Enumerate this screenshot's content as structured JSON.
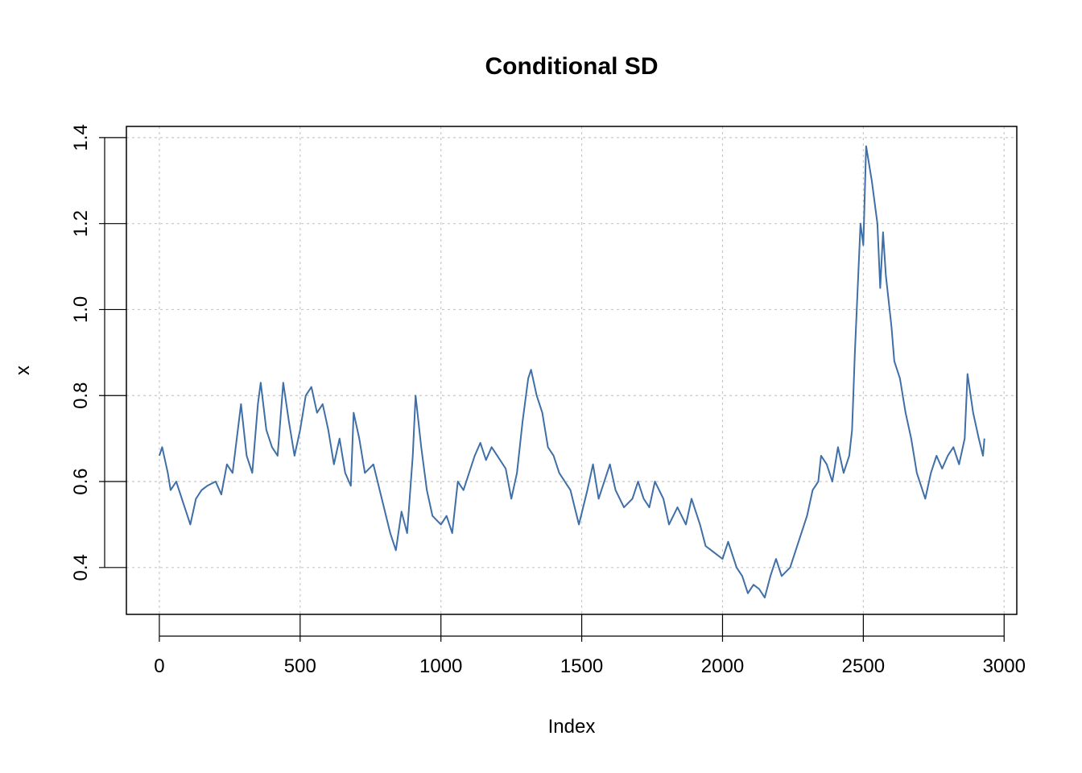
{
  "chart_data": {
    "type": "line",
    "title": "Conditional SD",
    "xlabel": "Index",
    "ylabel": "x",
    "color": "#3f6fa6",
    "grid": true,
    "xlim": [
      -117,
      3045
    ],
    "ylim": [
      0.291,
      1.426
    ],
    "xticks": [
      0,
      500,
      1000,
      1500,
      2000,
      2500,
      3000
    ],
    "yticks": [
      0.4,
      0.6,
      0.8,
      {
        "value": 1,
        "label": "1.0"
      },
      1.2,
      1.4
    ],
    "x": [
      0,
      10,
      30,
      40,
      60,
      80,
      100,
      110,
      130,
      150,
      170,
      200,
      220,
      240,
      260,
      290,
      310,
      330,
      350,
      360,
      380,
      400,
      420,
      440,
      460,
      480,
      500,
      520,
      540,
      560,
      580,
      600,
      620,
      640,
      660,
      680,
      690,
      710,
      730,
      760,
      790,
      820,
      840,
      860,
      880,
      900,
      910,
      930,
      950,
      970,
      1000,
      1020,
      1040,
      1060,
      1080,
      1100,
      1120,
      1140,
      1160,
      1180,
      1200,
      1230,
      1250,
      1270,
      1290,
      1310,
      1320,
      1340,
      1360,
      1380,
      1400,
      1420,
      1440,
      1460,
      1490,
      1520,
      1540,
      1560,
      1580,
      1600,
      1620,
      1650,
      1680,
      1700,
      1720,
      1740,
      1760,
      1790,
      1810,
      1840,
      1870,
      1890,
      1920,
      1940,
      1960,
      1980,
      2000,
      2020,
      2050,
      2070,
      2090,
      2110,
      2130,
      2150,
      2170,
      2190,
      2210,
      2240,
      2270,
      2300,
      2320,
      2340,
      2350,
      2370,
      2390,
      2410,
      2430,
      2450,
      2460,
      2470,
      2480,
      2490,
      2500,
      2510,
      2530,
      2550,
      2560,
      2570,
      2580,
      2600,
      2610,
      2630,
      2650,
      2670,
      2690,
      2710,
      2720,
      2740,
      2760,
      2780,
      2800,
      2820,
      2840,
      2860,
      2870,
      2890,
      2910,
      2925,
      2930
    ],
    "values": [
      0.66,
      0.68,
      0.62,
      0.58,
      0.6,
      0.56,
      0.52,
      0.5,
      0.56,
      0.58,
      0.59,
      0.6,
      0.57,
      0.64,
      0.62,
      0.78,
      0.66,
      0.62,
      0.78,
      0.83,
      0.72,
      0.68,
      0.66,
      0.83,
      0.74,
      0.66,
      0.72,
      0.8,
      0.82,
      0.76,
      0.78,
      0.72,
      0.64,
      0.7,
      0.62,
      0.59,
      0.76,
      0.7,
      0.62,
      0.64,
      0.56,
      0.48,
      0.44,
      0.53,
      0.48,
      0.66,
      0.8,
      0.68,
      0.58,
      0.52,
      0.5,
      0.52,
      0.48,
      0.6,
      0.58,
      0.62,
      0.66,
      0.69,
      0.65,
      0.68,
      0.66,
      0.63,
      0.56,
      0.62,
      0.74,
      0.84,
      0.86,
      0.8,
      0.76,
      0.68,
      0.66,
      0.62,
      0.6,
      0.58,
      0.5,
      0.58,
      0.64,
      0.56,
      0.6,
      0.64,
      0.58,
      0.54,
      0.56,
      0.6,
      0.56,
      0.54,
      0.6,
      0.56,
      0.5,
      0.54,
      0.5,
      0.56,
      0.5,
      0.45,
      0.44,
      0.43,
      0.42,
      0.46,
      0.4,
      0.38,
      0.34,
      0.36,
      0.35,
      0.33,
      0.38,
      0.42,
      0.38,
      0.4,
      0.46,
      0.52,
      0.58,
      0.6,
      0.66,
      0.64,
      0.6,
      0.68,
      0.62,
      0.66,
      0.72,
      0.9,
      1.05,
      1.2,
      1.15,
      1.38,
      1.3,
      1.2,
      1.05,
      1.18,
      1.08,
      0.96,
      0.88,
      0.84,
      0.76,
      0.7,
      0.62,
      0.58,
      0.56,
      0.62,
      0.66,
      0.63,
      0.66,
      0.68,
      0.64,
      0.7,
      0.85,
      0.76,
      0.7,
      0.66,
      0.7
    ]
  }
}
